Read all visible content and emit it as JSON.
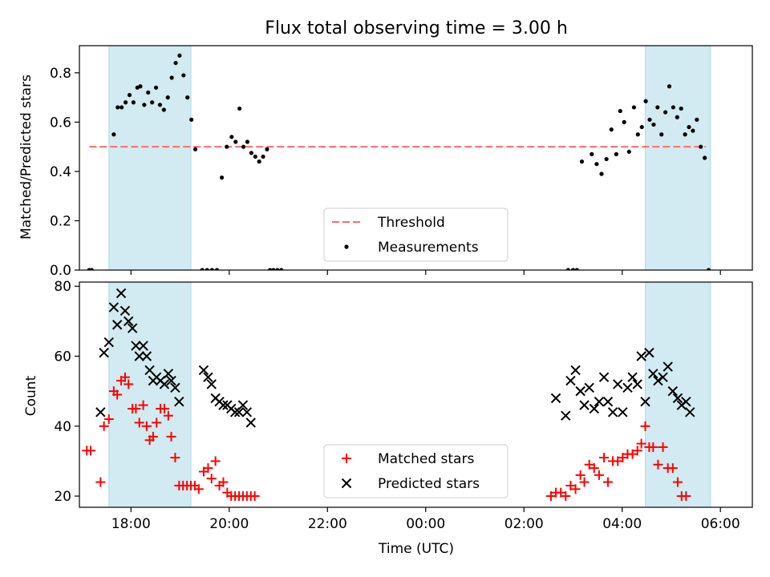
{
  "figure": {
    "title": "Flux total observing time = 3.00 h"
  },
  "colors": {
    "shade": "#add8e6",
    "threshold": "#ff6b6b",
    "matched": "#ff0000",
    "predicted": "#000000",
    "measurement": "#000000"
  },
  "chart_data": [
    {
      "type": "scatter",
      "ylabel": "Matched/Predicted stars",
      "xlim": [
        -1.05,
        12.65
      ],
      "ylim": [
        0,
        0.91
      ],
      "yticks": [
        0.0,
        0.2,
        0.4,
        0.6,
        0.8
      ],
      "ytick_labels": [
        "0.0",
        "0.2",
        "0.4",
        "0.6",
        "0.8"
      ],
      "shaded_regions_hours": [
        [
          -0.45,
          1.22
        ],
        [
          10.47,
          11.8
        ]
      ],
      "threshold": 0.5,
      "legend": {
        "position": "lower-center",
        "entries": [
          "Threshold",
          "Measurements"
        ]
      },
      "series": [
        {
          "name": "Measurements",
          "points": [
            [
              -0.85,
              0.0
            ],
            [
              -0.8,
              0.0
            ],
            [
              -0.35,
              0.55
            ],
            [
              -0.27,
              0.66
            ],
            [
              -0.19,
              0.66
            ],
            [
              -0.11,
              0.68
            ],
            [
              -0.03,
              0.71
            ],
            [
              0.05,
              0.68
            ],
            [
              0.13,
              0.74
            ],
            [
              0.19,
              0.745
            ],
            [
              0.27,
              0.67
            ],
            [
              0.35,
              0.72
            ],
            [
              0.43,
              0.68
            ],
            [
              0.51,
              0.74
            ],
            [
              0.59,
              0.67
            ],
            [
              0.67,
              0.65
            ],
            [
              0.75,
              0.7
            ],
            [
              0.83,
              0.78
            ],
            [
              0.91,
              0.84
            ],
            [
              0.99,
              0.87
            ],
            [
              1.07,
              0.79
            ],
            [
              1.15,
              0.7
            ],
            [
              1.23,
              0.61
            ],
            [
              1.31,
              0.49
            ],
            [
              1.45,
              0.0
            ],
            [
              1.55,
              0.0
            ],
            [
              1.65,
              0.0
            ],
            [
              1.75,
              0.0
            ],
            [
              1.85,
              0.375
            ],
            [
              1.95,
              0.5
            ],
            [
              2.05,
              0.54
            ],
            [
              2.13,
              0.52
            ],
            [
              2.21,
              0.655
            ],
            [
              2.29,
              0.5
            ],
            [
              2.37,
              0.52
            ],
            [
              2.45,
              0.475
            ],
            [
              2.53,
              0.46
            ],
            [
              2.61,
              0.44
            ],
            [
              2.69,
              0.46
            ],
            [
              2.77,
              0.49
            ],
            [
              2.83,
              0.0
            ],
            [
              2.9,
              0.0
            ],
            [
              2.98,
              0.0
            ],
            [
              3.06,
              0.0
            ],
            [
              8.9,
              0.0
            ],
            [
              9.0,
              0.0
            ],
            [
              9.08,
              0.0
            ],
            [
              9.18,
              0.44
            ],
            [
              9.38,
              0.47
            ],
            [
              9.48,
              0.43
            ],
            [
              9.58,
              0.39
            ],
            [
              9.68,
              0.45
            ],
            [
              9.78,
              0.57
            ],
            [
              9.88,
              0.47
            ],
            [
              9.96,
              0.645
            ],
            [
              10.04,
              0.6
            ],
            [
              10.14,
              0.48
            ],
            [
              10.24,
              0.66
            ],
            [
              10.32,
              0.55
            ],
            [
              10.4,
              0.58
            ],
            [
              10.48,
              0.685
            ],
            [
              10.56,
              0.61
            ],
            [
              10.64,
              0.59
            ],
            [
              10.72,
              0.66
            ],
            [
              10.8,
              0.55
            ],
            [
              10.88,
              0.64
            ],
            [
              10.96,
              0.745
            ],
            [
              11.04,
              0.66
            ],
            [
              11.12,
              0.62
            ],
            [
              11.2,
              0.655
            ],
            [
              11.28,
              0.55
            ],
            [
              11.36,
              0.58
            ],
            [
              11.44,
              0.565
            ],
            [
              11.52,
              0.61
            ],
            [
              11.6,
              0.5
            ],
            [
              11.68,
              0.455
            ],
            [
              11.76,
              0.0
            ]
          ]
        }
      ]
    },
    {
      "type": "scatter",
      "ylabel": "Count",
      "xlabel": "Time (UTC)",
      "xlim": [
        -1.05,
        12.65
      ],
      "ylim": [
        16.8,
        81.2
      ],
      "yticks": [
        20,
        40,
        60,
        80
      ],
      "ytick_labels": [
        "20",
        "40",
        "60",
        "80"
      ],
      "xticks_hours": [
        0,
        2,
        4,
        6,
        8,
        10,
        12
      ],
      "xtick_labels": [
        "18:00",
        "20:00",
        "22:00",
        "00:00",
        "02:00",
        "04:00",
        "06:00"
      ],
      "shaded_regions_hours": [
        [
          -0.45,
          1.22
        ],
        [
          10.47,
          11.8
        ]
      ],
      "legend": {
        "position": "lower-center",
        "entries": [
          "Matched stars",
          "Predicted stars"
        ]
      },
      "series": [
        {
          "name": "Matched stars",
          "marker": "plus",
          "points": [
            [
              -0.9,
              33
            ],
            [
              -0.82,
              33
            ],
            [
              -0.62,
              24
            ],
            [
              -0.55,
              40
            ],
            [
              -0.45,
              42
            ],
            [
              -0.35,
              50
            ],
            [
              -0.28,
              49
            ],
            [
              -0.2,
              53
            ],
            [
              -0.12,
              54
            ],
            [
              -0.05,
              52
            ],
            [
              0.03,
              45
            ],
            [
              0.1,
              45
            ],
            [
              0.17,
              41
            ],
            [
              0.25,
              46
            ],
            [
              0.32,
              40
            ],
            [
              0.38,
              36
            ],
            [
              0.45,
              37
            ],
            [
              0.52,
              41
            ],
            [
              0.6,
              45
            ],
            [
              0.68,
              45
            ],
            [
              0.76,
              43
            ],
            [
              0.82,
              37
            ],
            [
              0.9,
              31
            ],
            [
              0.98,
              23
            ],
            [
              1.06,
              23
            ],
            [
              1.14,
              23
            ],
            [
              1.22,
              23
            ],
            [
              1.3,
              23
            ],
            [
              1.38,
              22
            ],
            [
              1.48,
              27
            ],
            [
              1.57,
              28
            ],
            [
              1.64,
              25
            ],
            [
              1.72,
              30
            ],
            [
              1.8,
              23
            ],
            [
              1.88,
              24
            ],
            [
              1.96,
              21
            ],
            [
              2.04,
              20
            ],
            [
              2.12,
              20
            ],
            [
              2.2,
              20
            ],
            [
              2.28,
              20
            ],
            [
              2.36,
              20
            ],
            [
              2.44,
              20
            ],
            [
              2.52,
              20
            ],
            [
              8.55,
              20
            ],
            [
              8.65,
              21
            ],
            [
              8.75,
              21
            ],
            [
              8.85,
              20
            ],
            [
              8.95,
              23
            ],
            [
              9.05,
              22
            ],
            [
              9.15,
              26
            ],
            [
              9.23,
              24
            ],
            [
              9.33,
              29
            ],
            [
              9.43,
              28
            ],
            [
              9.53,
              26
            ],
            [
              9.63,
              31
            ],
            [
              9.71,
              24
            ],
            [
              9.81,
              30
            ],
            [
              9.91,
              30
            ],
            [
              10.01,
              31
            ],
            [
              10.11,
              32
            ],
            [
              10.21,
              32
            ],
            [
              10.31,
              33
            ],
            [
              10.39,
              35
            ],
            [
              10.47,
              40
            ],
            [
              10.55,
              34
            ],
            [
              10.63,
              34
            ],
            [
              10.73,
              29
            ],
            [
              10.83,
              34
            ],
            [
              10.93,
              28
            ],
            [
              11.03,
              28
            ],
            [
              11.13,
              24
            ],
            [
              11.21,
              20
            ],
            [
              11.3,
              20
            ]
          ]
        },
        {
          "name": "Predicted stars",
          "marker": "cross",
          "points": [
            [
              -0.62,
              44
            ],
            [
              -0.55,
              61
            ],
            [
              -0.45,
              64
            ],
            [
              -0.35,
              74
            ],
            [
              -0.28,
              69
            ],
            [
              -0.2,
              78
            ],
            [
              -0.12,
              73
            ],
            [
              -0.05,
              70
            ],
            [
              0.03,
              68
            ],
            [
              0.1,
              63
            ],
            [
              0.17,
              60
            ],
            [
              0.25,
              63
            ],
            [
              0.32,
              60
            ],
            [
              0.38,
              56
            ],
            [
              0.45,
              53
            ],
            [
              0.52,
              54
            ],
            [
              0.6,
              53
            ],
            [
              0.68,
              52
            ],
            [
              0.76,
              55
            ],
            [
              0.82,
              53
            ],
            [
              0.9,
              51
            ],
            [
              0.98,
              47
            ],
            [
              1.48,
              56
            ],
            [
              1.57,
              54
            ],
            [
              1.64,
              52
            ],
            [
              1.72,
              48
            ],
            [
              1.8,
              47
            ],
            [
              1.88,
              46
            ],
            [
              1.96,
              46
            ],
            [
              2.04,
              45
            ],
            [
              2.12,
              44
            ],
            [
              2.2,
              44
            ],
            [
              2.28,
              46
            ],
            [
              2.36,
              44
            ],
            [
              2.44,
              41
            ],
            [
              8.65,
              48
            ],
            [
              8.85,
              43
            ],
            [
              8.95,
              53
            ],
            [
              9.05,
              56
            ],
            [
              9.15,
              50
            ],
            [
              9.23,
              46
            ],
            [
              9.33,
              51
            ],
            [
              9.43,
              45
            ],
            [
              9.53,
              47
            ],
            [
              9.63,
              54
            ],
            [
              9.71,
              47
            ],
            [
              9.81,
              44
            ],
            [
              9.91,
              52
            ],
            [
              10.01,
              44
            ],
            [
              10.11,
              51
            ],
            [
              10.21,
              54
            ],
            [
              10.31,
              52
            ],
            [
              10.39,
              60
            ],
            [
              10.47,
              47
            ],
            [
              10.55,
              61
            ],
            [
              10.63,
              55
            ],
            [
              10.73,
              53
            ],
            [
              10.83,
              54
            ],
            [
              10.93,
              57
            ],
            [
              11.03,
              50
            ],
            [
              11.13,
              48
            ],
            [
              11.21,
              46
            ],
            [
              11.3,
              47
            ],
            [
              11.38,
              44
            ]
          ]
        }
      ]
    }
  ]
}
